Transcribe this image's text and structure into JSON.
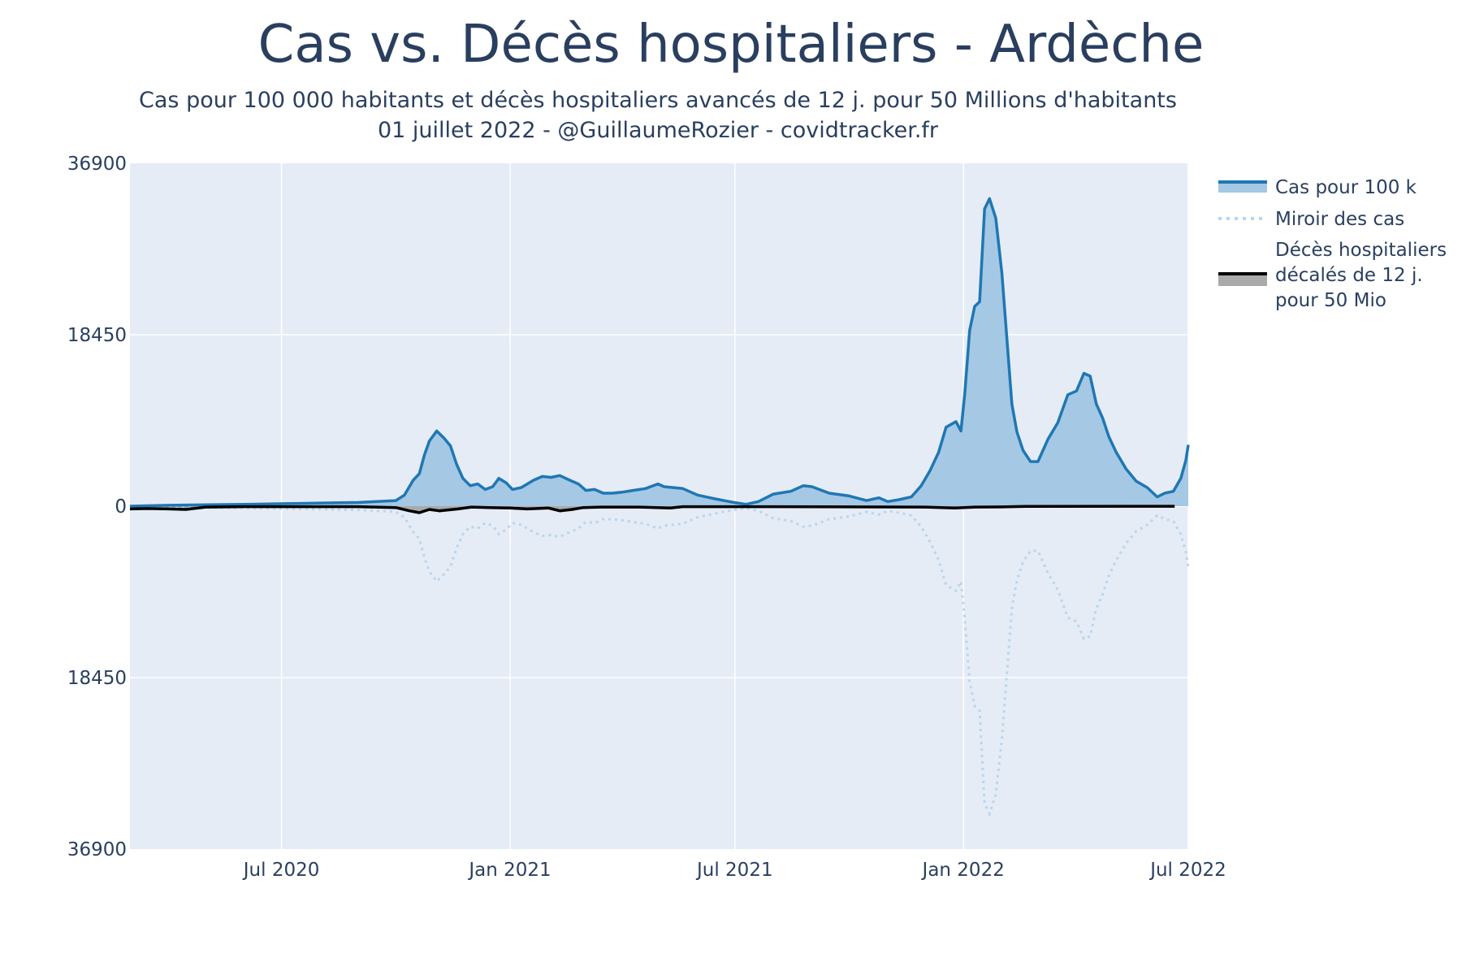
{
  "title": "Cas vs. Décès hospitaliers - Ardèche",
  "subtitle_line1": "Cas pour 100 000 habitants et décès hospitaliers avancés de 12 j. pour 50 Millions d'habitants",
  "subtitle_line2": "01 juillet 2022 - @GuillaumeRozier - covidtracker.fr",
  "colors": {
    "plot_bg": "#e5ecf6",
    "cases_line": "#1f77b4",
    "cases_fill": "#a5c8e4",
    "mirror_line": "#b9d5ec",
    "deaths_line": "#000000",
    "deaths_fill": "#aaaaaa",
    "grid": "#ffffff"
  },
  "chart_data": {
    "type": "area",
    "x_range": [
      "2020-03-01",
      "2022-07-01"
    ],
    "y_range": [
      -36900,
      36900
    ],
    "x_ticks": [
      {
        "date": "2020-07-01",
        "label": "Jul 2020"
      },
      {
        "date": "2021-01-01",
        "label": "Jan 2021"
      },
      {
        "date": "2021-07-01",
        "label": "Jul 2021"
      },
      {
        "date": "2022-01-01",
        "label": "Jan 2022"
      },
      {
        "date": "2022-07-01",
        "label": "Jul 2022"
      }
    ],
    "y_ticks": [
      {
        "value": 36900,
        "label": "36900"
      },
      {
        "value": 18450,
        "label": "18450"
      },
      {
        "value": 0,
        "label": "0"
      },
      {
        "value": -18450,
        "label": "18450"
      },
      {
        "value": -36900,
        "label": "36900"
      }
    ],
    "grid": true,
    "legend_position": "right",
    "series": [
      {
        "name": "Cas pour 100 k",
        "style": "line-fill",
        "points": [
          [
            "2020-03-01",
            0
          ],
          [
            "2020-04-01",
            100
          ],
          [
            "2020-06-01",
            200
          ],
          [
            "2020-09-01",
            400
          ],
          [
            "2020-10-01",
            600
          ],
          [
            "2020-10-08",
            1200
          ],
          [
            "2020-10-15",
            2800
          ],
          [
            "2020-10-20",
            3500
          ],
          [
            "2020-10-24",
            5500
          ],
          [
            "2020-10-28",
            7000
          ],
          [
            "2020-11-03",
            8100
          ],
          [
            "2020-11-09",
            7300
          ],
          [
            "2020-11-14",
            6500
          ],
          [
            "2020-11-19",
            4500
          ],
          [
            "2020-11-24",
            3000
          ],
          [
            "2020-11-30",
            2200
          ],
          [
            "2020-12-06",
            2400
          ],
          [
            "2020-12-12",
            1800
          ],
          [
            "2020-12-18",
            2100
          ],
          [
            "2020-12-23",
            3000
          ],
          [
            "2020-12-29",
            2500
          ],
          [
            "2021-01-03",
            1800
          ],
          [
            "2021-01-10",
            2000
          ],
          [
            "2021-01-20",
            2800
          ],
          [
            "2021-01-27",
            3200
          ],
          [
            "2021-02-03",
            3100
          ],
          [
            "2021-02-10",
            3300
          ],
          [
            "2021-02-18",
            2800
          ],
          [
            "2021-02-25",
            2400
          ],
          [
            "2021-03-03",
            1700
          ],
          [
            "2021-03-10",
            1800
          ],
          [
            "2021-03-17",
            1400
          ],
          [
            "2021-03-24",
            1400
          ],
          [
            "2021-04-01",
            1500
          ],
          [
            "2021-04-10",
            1700
          ],
          [
            "2021-04-20",
            1900
          ],
          [
            "2021-04-30",
            2400
          ],
          [
            "2021-05-05",
            2100
          ],
          [
            "2021-05-20",
            1900
          ],
          [
            "2021-06-01",
            1200
          ],
          [
            "2021-06-15",
            800
          ],
          [
            "2021-06-30",
            400
          ],
          [
            "2021-07-10",
            200
          ],
          [
            "2021-07-20",
            500
          ],
          [
            "2021-08-01",
            1300
          ],
          [
            "2021-08-15",
            1600
          ],
          [
            "2021-08-25",
            2200
          ],
          [
            "2021-09-01",
            2100
          ],
          [
            "2021-09-15",
            1400
          ],
          [
            "2021-10-01",
            1100
          ],
          [
            "2021-10-15",
            600
          ],
          [
            "2021-10-25",
            900
          ],
          [
            "2021-11-01",
            500
          ],
          [
            "2021-11-10",
            700
          ],
          [
            "2021-11-20",
            1000
          ],
          [
            "2021-11-28",
            2200
          ],
          [
            "2021-12-05",
            3800
          ],
          [
            "2021-12-12",
            5800
          ],
          [
            "2021-12-18",
            8500
          ],
          [
            "2021-12-26",
            9100
          ],
          [
            "2021-12-30",
            8100
          ],
          [
            "2022-01-02",
            12000
          ],
          [
            "2022-01-06",
            18900
          ],
          [
            "2022-01-10",
            21500
          ],
          [
            "2022-01-14",
            22000
          ],
          [
            "2022-01-18",
            32000
          ],
          [
            "2022-01-22",
            33100
          ],
          [
            "2022-01-27",
            31000
          ],
          [
            "2022-02-01",
            25000
          ],
          [
            "2022-02-05",
            18000
          ],
          [
            "2022-02-09",
            11000
          ],
          [
            "2022-02-13",
            8000
          ],
          [
            "2022-02-18",
            6000
          ],
          [
            "2022-02-24",
            4800
          ],
          [
            "2022-03-02",
            4800
          ],
          [
            "2022-03-10",
            7200
          ],
          [
            "2022-03-18",
            9000
          ],
          [
            "2022-03-26",
            12000
          ],
          [
            "2022-04-02",
            12400
          ],
          [
            "2022-04-08",
            14300
          ],
          [
            "2022-04-13",
            14000
          ],
          [
            "2022-04-18",
            11000
          ],
          [
            "2022-04-23",
            9500
          ],
          [
            "2022-04-28",
            7500
          ],
          [
            "2022-05-04",
            5800
          ],
          [
            "2022-05-12",
            4000
          ],
          [
            "2022-05-20",
            2700
          ],
          [
            "2022-05-29",
            2000
          ],
          [
            "2022-06-06",
            1000
          ],
          [
            "2022-06-12",
            1400
          ],
          [
            "2022-06-19",
            1600
          ],
          [
            "2022-06-25",
            3000
          ],
          [
            "2022-06-29",
            4900
          ],
          [
            "2022-07-01",
            6600
          ]
        ]
      },
      {
        "name": "Miroir des cas",
        "style": "dotted",
        "mirror_of": "Cas pour 100 k"
      },
      {
        "name": "Décès hospitaliers décalés de 12 j. pour 50 Mio",
        "legend_lines": [
          "Décès hospitaliers",
          "décalés de 12 j.",
          "pour 50 Mio"
        ],
        "style": "line-fill",
        "points": [
          [
            "2020-03-01",
            -300
          ],
          [
            "2020-03-15",
            -250
          ],
          [
            "2020-04-01",
            -300
          ],
          [
            "2020-04-15",
            -350
          ],
          [
            "2020-05-01",
            -100
          ],
          [
            "2020-06-01",
            -50
          ],
          [
            "2020-09-01",
            -50
          ],
          [
            "2020-10-01",
            -150
          ],
          [
            "2020-10-12",
            -500
          ],
          [
            "2020-10-20",
            -700
          ],
          [
            "2020-10-28",
            -350
          ],
          [
            "2020-11-05",
            -500
          ],
          [
            "2020-11-12",
            -400
          ],
          [
            "2020-11-20",
            -300
          ],
          [
            "2020-12-01",
            -100
          ],
          [
            "2020-12-15",
            -150
          ],
          [
            "2021-01-01",
            -200
          ],
          [
            "2021-01-15",
            -300
          ],
          [
            "2021-02-01",
            -200
          ],
          [
            "2021-02-10",
            -500
          ],
          [
            "2021-02-20",
            -350
          ],
          [
            "2021-03-01",
            -150
          ],
          [
            "2021-03-15",
            -100
          ],
          [
            "2021-04-15",
            -100
          ],
          [
            "2021-05-10",
            -200
          ],
          [
            "2021-05-20",
            -50
          ],
          [
            "2021-08-01",
            -50
          ],
          [
            "2021-12-01",
            -100
          ],
          [
            "2021-12-25",
            -200
          ],
          [
            "2022-01-10",
            -100
          ],
          [
            "2022-02-01",
            -80
          ],
          [
            "2022-02-20",
            -30
          ],
          [
            "2022-06-20",
            -10
          ]
        ]
      }
    ]
  }
}
